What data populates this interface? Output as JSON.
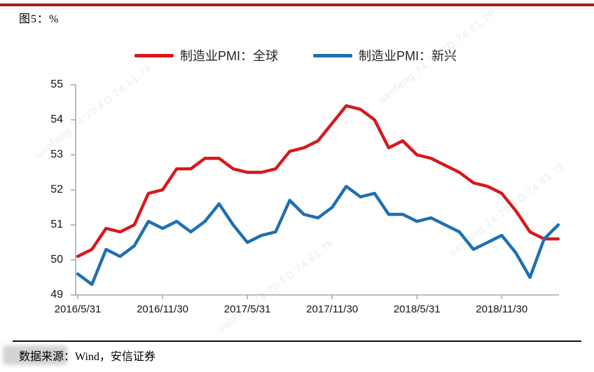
{
  "header": {
    "figure_label": "图5：%"
  },
  "footer": {
    "source_note": "数据来源：Wind，安信证券"
  },
  "watermark": {
    "text": "uanfang 74:70 FD:74.61.7F"
  },
  "colors": {
    "global_line": "#d6191c",
    "emerging_line": "#1e6fb2",
    "axis": "#a6a6a6",
    "top_rule": "#a11d20"
  },
  "chart_data": {
    "type": "line",
    "title": "图5：%",
    "xlabel": "",
    "ylabel": "%",
    "ylim": [
      49,
      55
    ],
    "grid": false,
    "legend_position": "top",
    "y_ticks": [
      55,
      54,
      53,
      52,
      51,
      50,
      49
    ],
    "x_tick_labels": [
      "2016/5/31",
      "2016/11/30",
      "2017/5/31",
      "2017/11/30",
      "2018/5/31",
      "2018/11/30"
    ],
    "x_tick_indices": [
      0,
      6,
      12,
      18,
      24,
      30
    ],
    "x": [
      "2016/5",
      "2016/6",
      "2016/7",
      "2016/8",
      "2016/9",
      "2016/10",
      "2016/11",
      "2016/12",
      "2017/1",
      "2017/2",
      "2017/3",
      "2017/4",
      "2017/5",
      "2017/6",
      "2017/7",
      "2017/8",
      "2017/9",
      "2017/10",
      "2017/11",
      "2017/12",
      "2018/1",
      "2018/2",
      "2018/3",
      "2018/4",
      "2018/5",
      "2018/6",
      "2018/7",
      "2018/8",
      "2018/9",
      "2018/10",
      "2018/11",
      "2018/12",
      "2019/1",
      "2019/2",
      "2019/3"
    ],
    "series": [
      {
        "name": "制造业PMI：全球",
        "color": "#d6191c",
        "values": [
          50.1,
          50.3,
          50.9,
          50.8,
          51.0,
          51.9,
          52.0,
          52.6,
          52.6,
          52.9,
          52.9,
          52.6,
          52.5,
          52.5,
          52.6,
          53.1,
          53.2,
          53.4,
          53.9,
          54.4,
          54.3,
          54.0,
          53.2,
          53.4,
          53.0,
          52.9,
          52.7,
          52.5,
          52.2,
          52.1,
          51.9,
          51.4,
          50.8,
          50.6,
          50.6
        ]
      },
      {
        "name": "制造业PMI：新兴",
        "color": "#1e6fb2",
        "values": [
          49.6,
          49.3,
          50.3,
          50.1,
          50.4,
          51.1,
          50.9,
          51.1,
          50.8,
          51.1,
          51.6,
          51.0,
          50.5,
          50.7,
          50.8,
          51.7,
          51.3,
          51.2,
          51.5,
          52.1,
          51.8,
          51.9,
          51.3,
          51.3,
          51.1,
          51.2,
          51.0,
          50.8,
          50.3,
          50.5,
          50.7,
          50.2,
          49.5,
          50.6,
          51.0
        ]
      }
    ]
  }
}
